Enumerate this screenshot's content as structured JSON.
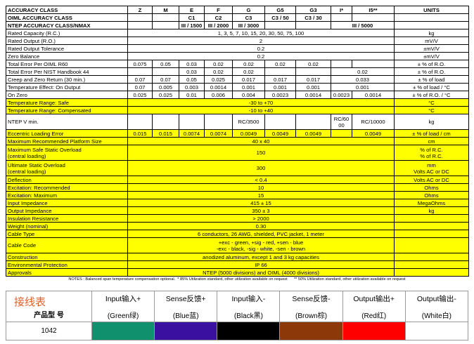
{
  "spec_table": {
    "rows": [
      {
        "label": "ACCURACY CLASS",
        "cells": [
          "Z",
          "M",
          "E",
          "F",
          "G",
          "G5",
          "G3",
          "I*",
          "I5**"
        ],
        "unit": "UNITS"
      },
      {
        "label": "OIML ACCURACY CLASS",
        "cells": [
          "C1",
          "C2",
          "C3",
          "C3 / 50",
          "C3 / 30"
        ]
      },
      {
        "label": "NTEP ACCURACY CLASS/NMAX",
        "cells": [
          "III / 1500",
          "III / 2000",
          "III / 3000",
          "III / 5000"
        ]
      },
      {
        "label": "Rated Capacity (R.C.)",
        "cells": [
          "1, 3, 5, 7, 10, 15, 20, 30, 50, 75, 100"
        ],
        "unit": "kg"
      },
      {
        "label": "Rated Output (R.O.)",
        "cells": [
          "2"
        ],
        "unit": "mV/V"
      },
      {
        "label": "Rated Output Tolerance",
        "cells": [
          "0.2"
        ],
        "unit": "±mV/V"
      },
      {
        "label": "Zero Balance",
        "cells": [
          "0.2"
        ],
        "unit": "±mV/V"
      },
      {
        "label": "Total Error Per OIML R60",
        "cells": [
          "0.075",
          "0.05",
          "0.03",
          "0.02",
          "0.02",
          "0.02",
          "0.02"
        ],
        "unit": "± % of R.O."
      },
      {
        "label": "Total Error Per NIST Handbook 44",
        "cells": [
          "0.03",
          "0.02",
          "0.02",
          "0.02"
        ],
        "unit": "± % of R.O."
      },
      {
        "label": "Creep and Zero Return (30 min.)",
        "cells": [
          "0.07",
          "0.07",
          "0.05",
          "0.025",
          "0.017",
          "0.017",
          "0.017",
          "0.033"
        ],
        "unit": "± % of load"
      },
      {
        "label": "Temperature Effect: On Output",
        "cells": [
          "0.07",
          "0.005",
          "0.003",
          "0.0014",
          "0.001",
          "0.001",
          "0.001",
          "0.001"
        ],
        "unit": "± % of load / °C"
      },
      {
        "label": "On Zero",
        "cells": [
          "0.025",
          "0.025",
          "0.01",
          "0.006",
          "0.004",
          "0.0023",
          "0.0014",
          "0.0023",
          "0.0014"
        ],
        "unit": "± % of R.O. / °C"
      },
      {
        "label": "Temperature Range: Safe",
        "cells": [
          "-30 to +70"
        ],
        "unit": "°C"
      },
      {
        "label": "Temperature Range: Compensated",
        "cells": [
          "-10 to +40"
        ],
        "unit": "°C"
      },
      {
        "label": "NTEP V min.",
        "cells": [
          "RC/3500",
          "RC/6000",
          "RC/10000"
        ],
        "unit": "kg"
      },
      {
        "label": "Eccentric Loading Error",
        "cells": [
          "0.015",
          "0.015",
          "0.0074",
          "0.0074",
          "0.0049",
          "0.0049",
          "0.0049",
          "0.0049"
        ],
        "unit": "± % of load / cm"
      },
      {
        "label": "Maximum Recommended Platform Size",
        "cells": [
          "40 x 40"
        ],
        "unit": "cm"
      },
      {
        "label": "Maximum Safe Static Overload\n(central loading)",
        "cells": [
          "150"
        ],
        "unit": "% of R.C.\n% of R.C."
      },
      {
        "label": "Ultimate Static Overload\n(central loading)",
        "cells": [
          "300"
        ],
        "unit": "mm\nVolts AC or DC"
      },
      {
        "label": "Deflection",
        "cells": [
          "< 0.4"
        ],
        "unit": "Volts AC or DC"
      },
      {
        "label": "Excitation: Recommended",
        "cells": [
          "10"
        ],
        "unit": "Ohms"
      },
      {
        "label": "Excitation: Maximum",
        "cells": [
          "15"
        ],
        "unit": "Ohms"
      },
      {
        "label": "Input Impedance",
        "cells": [
          "415 ± 15"
        ],
        "unit": "MegaOhms"
      },
      {
        "label": "Output Impedance",
        "cells": [
          "350 ± 3"
        ],
        "unit": "kg"
      },
      {
        "label": "Insulation Resistance",
        "cells": [
          "> 2000"
        ]
      },
      {
        "label": "Weight (nominal)",
        "cells": [
          "0.30"
        ]
      },
      {
        "label": "Cable Type",
        "cells": [
          "6 conductors, 26 AWG, shielded, PVC jacket, 1 meter"
        ]
      },
      {
        "label": "Cable Code",
        "cells": [
          "+exc - green, +sig - red, +sen - blue\n-exc - black, -sig - white, -sen - brown"
        ]
      },
      {
        "label": "Construction",
        "cells": [
          "anodized aluminum, except 1 and 3 kg capacities"
        ]
      },
      {
        "label": "Environmental Protection",
        "cells": [
          "IP 66"
        ]
      },
      {
        "label": "Approvals",
        "cells": [
          "NTEP (5000 divisions) and OIML (4000 divisions)"
        ]
      }
    ],
    "notes": "NOTES : Balanced span temperature compensation optional.  * 85% Utilization standard, other utilization available on request      ** 50% Utilization standard, other utilization available on request"
  },
  "wiring": {
    "title": "接线表",
    "model_label": "产品型 号",
    "model": "1042",
    "columns": [
      {
        "name": "Input输入+",
        "color_name": "(Green绿)",
        "color": "#10906c"
      },
      {
        "name": "Sense反馈+",
        "color_name": "(Blue蓝)",
        "color": "#3a10a0"
      },
      {
        "name": "Input输入-",
        "color_name": "(Black黑)",
        "color": "#000000"
      },
      {
        "name": "Sense反馈-",
        "color_name": "(Brown棕)",
        "color": "#8c3808"
      },
      {
        "name": "Output输出+",
        "color_name": "(Red红)",
        "color": "#ff0000"
      },
      {
        "name": "Output输出-",
        "color_name": "(White白)",
        "color": "#ffffff"
      }
    ]
  }
}
